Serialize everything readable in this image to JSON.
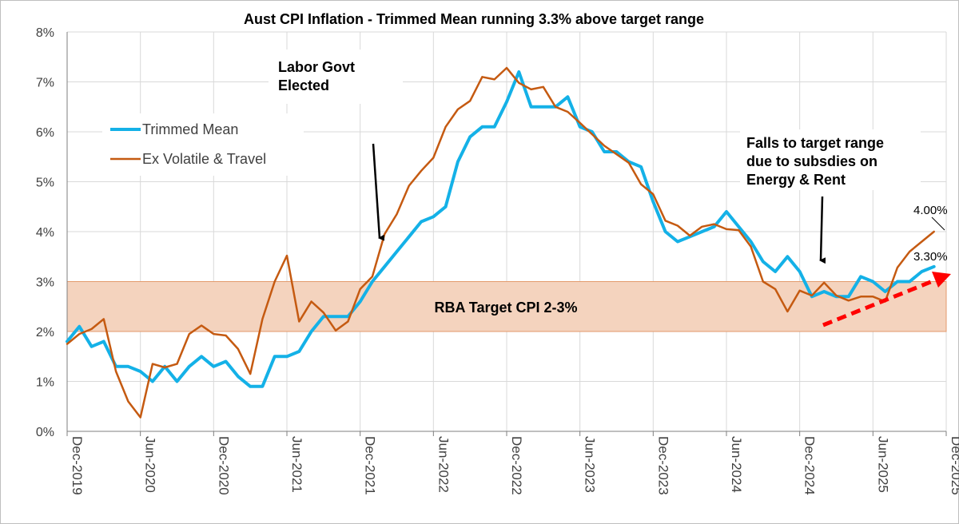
{
  "chart_data": {
    "type": "line",
    "title": "Aust CPI Inflation - Trimmed Mean running 3.3% above target range",
    "ylim": [
      0,
      8
    ],
    "y_ticks": [
      "0%",
      "1%",
      "2%",
      "3%",
      "4%",
      "5%",
      "6%",
      "7%",
      "8%"
    ],
    "x_ticks": [
      "Dec-2019",
      "Jun-2020",
      "Dec-2020",
      "Jun-2021",
      "Dec-2021",
      "Jun-2022",
      "Dec-2022",
      "Jun-2023",
      "Dec-2023",
      "Jun-2024",
      "Dec-2024",
      "Jun-2025",
      "Dec-2025"
    ],
    "x_unit": "months from Dec-2019",
    "xlim": [
      0,
      72
    ],
    "grid": true,
    "legend_position": "top-left",
    "target_band": {
      "low": 2,
      "high": 3,
      "label": "RBA Target CPI 2-3%",
      "color": "#f4d3be"
    },
    "series": [
      {
        "name": "Trimmed Mean",
        "color": "#14b1e7",
        "values": [
          1.8,
          2.1,
          1.7,
          1.8,
          1.3,
          1.3,
          1.2,
          1.0,
          1.3,
          1.0,
          1.3,
          1.5,
          1.3,
          1.4,
          1.1,
          0.9,
          0.9,
          1.5,
          1.5,
          1.6,
          2.0,
          2.3,
          2.3,
          2.3,
          2.6,
          3.0,
          3.3,
          3.6,
          3.9,
          4.2,
          4.3,
          4.5,
          5.4,
          5.9,
          6.1,
          6.1,
          6.6,
          7.2,
          6.5,
          6.5,
          6.5,
          6.7,
          6.1,
          6.0,
          5.6,
          5.6,
          5.4,
          5.3,
          4.6,
          4.0,
          3.8,
          3.9,
          4.0,
          4.1,
          4.4,
          4.1,
          3.8,
          3.4,
          3.2,
          3.5,
          3.2,
          2.7,
          2.8,
          2.7,
          2.7,
          3.1,
          3.0,
          2.8,
          3.0,
          3.0,
          3.2,
          3.3
        ]
      },
      {
        "name": "Ex Volatile & Travel",
        "color": "#c55a11",
        "values": [
          1.75,
          1.95,
          2.05,
          2.25,
          1.2,
          0.6,
          0.28,
          1.35,
          1.28,
          1.35,
          1.95,
          2.12,
          1.95,
          1.92,
          1.65,
          1.15,
          2.25,
          3.0,
          3.52,
          2.2,
          2.6,
          2.38,
          2.02,
          2.2,
          2.85,
          3.1,
          3.95,
          4.35,
          4.92,
          5.22,
          5.48,
          6.1,
          6.45,
          6.62,
          7.1,
          7.05,
          7.28,
          6.98,
          6.85,
          6.9,
          6.5,
          6.4,
          6.18,
          5.95,
          5.72,
          5.55,
          5.38,
          4.95,
          4.75,
          4.22,
          4.12,
          3.92,
          4.1,
          4.15,
          4.05,
          4.03,
          3.7,
          3.0,
          2.85,
          2.4,
          2.82,
          2.72,
          2.98,
          2.72,
          2.62,
          2.7,
          2.7,
          2.6,
          3.28,
          3.6,
          3.8,
          4.0
        ]
      }
    ],
    "end_labels": [
      "4.00%",
      "3.30%"
    ]
  },
  "annotations": {
    "labor": [
      "Labor Govt",
      "Elected"
    ],
    "falls": [
      "Falls to target range",
      "due to subsdies on",
      "Energy & Rent"
    ]
  }
}
